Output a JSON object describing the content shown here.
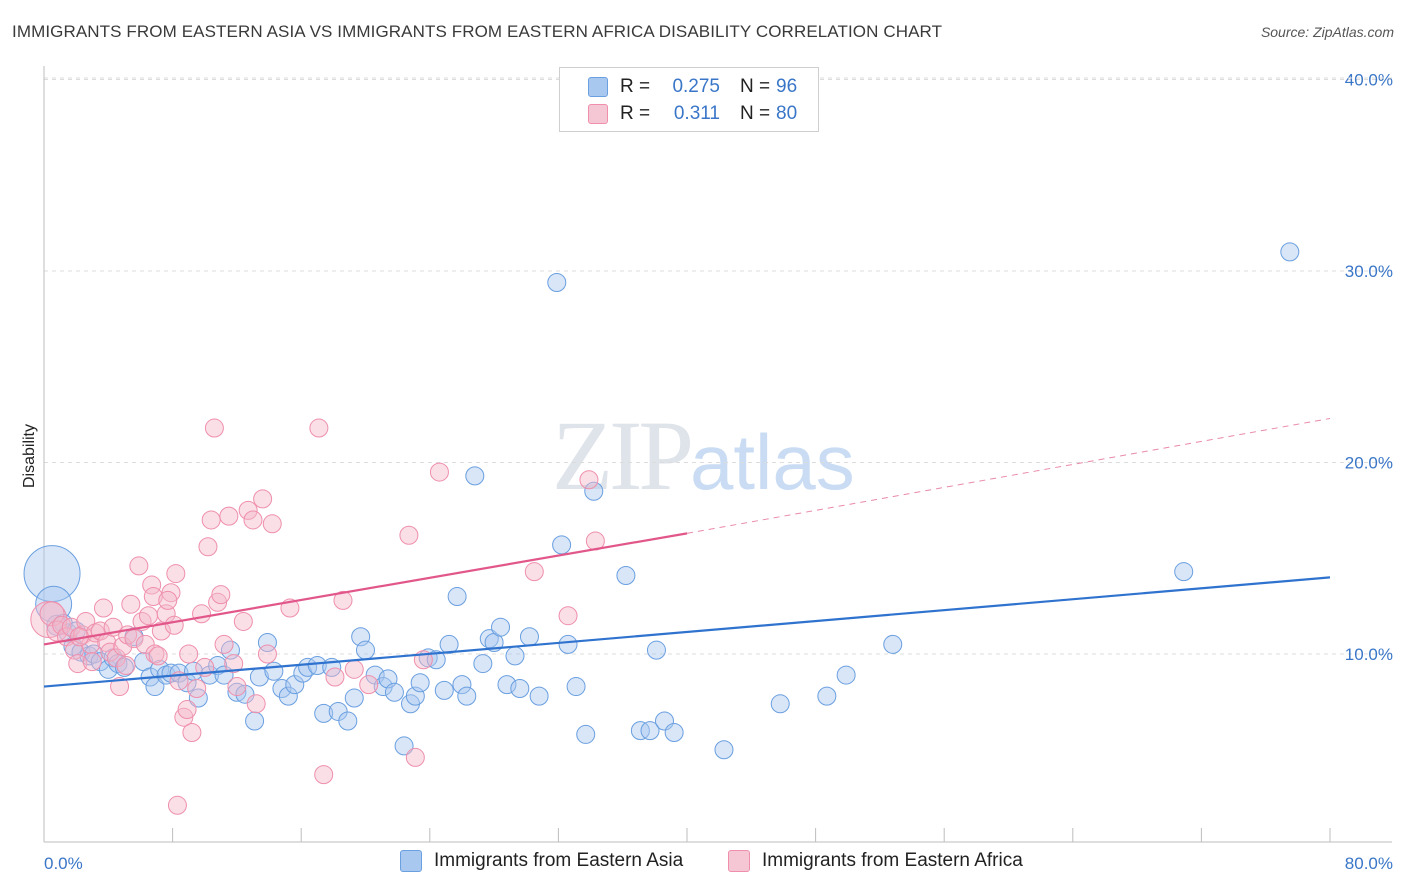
{
  "title": "IMMIGRANTS FROM EASTERN ASIA VS IMMIGRANTS FROM EASTERN AFRICA DISABILITY CORRELATION CHART",
  "source": "Source: ZipAtlas.com",
  "watermark": {
    "zip": "ZIP",
    "atlas": "atlas"
  },
  "legend": {
    "rows": [
      {
        "r_label": "R =",
        "r_value": "0.275",
        "n_label": "N =",
        "n_value": "96",
        "color": "#a9c8ef"
      },
      {
        "r_label": "R =",
        "r_value": "0.311",
        "n_label": "N =",
        "n_value": "80",
        "color": "#f5b8ca"
      }
    ]
  },
  "bottom_legend": [
    {
      "label": "Immigrants from Eastern Asia",
      "color": "#a9c8ef"
    },
    {
      "label": "Immigrants from Eastern Africa",
      "color": "#f5b8ca"
    }
  ],
  "chart_data": {
    "type": "scatter",
    "title": "IMMIGRANTS FROM EASTERN ASIA VS IMMIGRANTS FROM EASTERN AFRICA DISABILITY CORRELATION CHART",
    "xlabel": "",
    "ylabel": "Disability",
    "xlim": [
      0,
      80
    ],
    "ylim": [
      0,
      42
    ],
    "x_tick_labels": [
      "0.0%",
      "80.0%"
    ],
    "y_ticks": [
      10,
      20,
      30,
      40
    ],
    "y_tick_labels": [
      "10.0%",
      "20.0%",
      "30.0%",
      "40.0%"
    ],
    "grid": "horizontal dashed",
    "legend_position": "top-center",
    "series": [
      {
        "name": "Immigrants from Eastern Asia",
        "color": "#6a9fe0",
        "trend": {
          "x": [
            0,
            80
          ],
          "y": [
            8.3,
            14.0
          ],
          "color": "#2f73cf"
        },
        "points": [
          [
            0.5,
            14.2,
            28
          ],
          [
            0.6,
            12.6,
            18
          ],
          [
            0.8,
            11.5,
            10
          ],
          [
            1.2,
            11.6,
            9
          ],
          [
            1.5,
            11.1,
            9
          ],
          [
            1.8,
            10.4,
            9
          ],
          [
            2.0,
            11.2,
            9
          ],
          [
            2.3,
            10.1,
            9
          ],
          [
            2.8,
            9.9,
            9
          ],
          [
            3.1,
            10.0,
            9
          ],
          [
            3.5,
            9.6,
            9
          ],
          [
            4.0,
            9.2,
            9
          ],
          [
            4.3,
            9.8,
            9
          ],
          [
            4.6,
            9.5,
            9
          ],
          [
            5.0,
            9.3,
            9
          ],
          [
            5.6,
            10.9,
            9
          ],
          [
            6.2,
            9.6,
            9
          ],
          [
            6.6,
            8.8,
            9
          ],
          [
            6.9,
            8.3,
            9
          ],
          [
            7.2,
            9.2,
            9
          ],
          [
            7.6,
            8.9,
            9
          ],
          [
            7.9,
            9.0,
            9
          ],
          [
            8.4,
            9.0,
            9
          ],
          [
            8.9,
            8.5,
            9
          ],
          [
            9.3,
            9.1,
            9
          ],
          [
            9.6,
            7.7,
            9
          ],
          [
            10.3,
            8.9,
            9
          ],
          [
            10.8,
            9.4,
            9
          ],
          [
            11.2,
            8.9,
            9
          ],
          [
            11.6,
            10.2,
            9
          ],
          [
            12.0,
            8.0,
            9
          ],
          [
            12.5,
            7.9,
            9
          ],
          [
            13.1,
            6.5,
            9
          ],
          [
            13.4,
            8.8,
            9
          ],
          [
            13.9,
            10.6,
            9
          ],
          [
            14.3,
            9.1,
            9
          ],
          [
            14.8,
            8.2,
            9
          ],
          [
            15.2,
            7.8,
            9
          ],
          [
            15.6,
            8.4,
            9
          ],
          [
            16.1,
            9.0,
            9
          ],
          [
            16.4,
            9.3,
            9
          ],
          [
            17.0,
            9.4,
            9
          ],
          [
            17.4,
            6.9,
            9
          ],
          [
            17.9,
            9.3,
            9
          ],
          [
            18.3,
            7.0,
            9
          ],
          [
            18.9,
            6.5,
            9
          ],
          [
            19.3,
            7.7,
            9
          ],
          [
            19.7,
            10.9,
            9
          ],
          [
            20.0,
            10.2,
            9
          ],
          [
            20.6,
            8.9,
            9
          ],
          [
            21.1,
            8.3,
            9
          ],
          [
            21.4,
            8.7,
            9
          ],
          [
            21.8,
            8.0,
            9
          ],
          [
            22.4,
            5.2,
            9
          ],
          [
            22.8,
            7.4,
            9
          ],
          [
            23.1,
            7.8,
            9
          ],
          [
            23.4,
            8.5,
            9
          ],
          [
            23.9,
            9.8,
            9
          ],
          [
            24.4,
            9.7,
            9
          ],
          [
            24.9,
            8.1,
            9
          ],
          [
            25.2,
            10.5,
            9
          ],
          [
            25.7,
            13.0,
            9
          ],
          [
            26.0,
            8.4,
            9
          ],
          [
            26.3,
            7.8,
            9
          ],
          [
            26.8,
            19.3,
            9
          ],
          [
            27.3,
            9.5,
            9
          ],
          [
            27.7,
            10.8,
            9
          ],
          [
            28.0,
            10.6,
            9
          ],
          [
            28.4,
            11.4,
            9
          ],
          [
            28.8,
            8.4,
            9
          ],
          [
            29.3,
            9.9,
            9
          ],
          [
            29.6,
            8.2,
            9
          ],
          [
            30.2,
            10.9,
            9
          ],
          [
            30.8,
            7.8,
            9
          ],
          [
            31.9,
            29.4,
            9
          ],
          [
            32.2,
            15.7,
            9
          ],
          [
            32.6,
            10.5,
            9
          ],
          [
            33.1,
            8.3,
            9
          ],
          [
            33.7,
            5.8,
            9
          ],
          [
            34.2,
            18.5,
            9
          ],
          [
            36.2,
            14.1,
            9
          ],
          [
            37.1,
            6.0,
            9
          ],
          [
            37.7,
            6.0,
            9
          ],
          [
            38.1,
            10.2,
            9
          ],
          [
            38.6,
            6.5,
            9
          ],
          [
            39.2,
            5.9,
            9
          ],
          [
            42.3,
            5.0,
            9
          ],
          [
            45.8,
            7.4,
            9
          ],
          [
            48.7,
            7.8,
            9
          ],
          [
            49.9,
            8.9,
            9
          ],
          [
            52.8,
            10.5,
            9
          ],
          [
            70.9,
            14.3,
            9
          ],
          [
            77.5,
            31.0,
            9
          ]
        ]
      },
      {
        "name": "Immigrants from Eastern Africa",
        "color": "#ef8fac",
        "trend": {
          "x": [
            0,
            40
          ],
          "y": [
            10.5,
            16.3
          ],
          "color": "#e2578a",
          "dashed_extension": {
            "x": [
              40,
              80
            ],
            "y": [
              16.3,
              22.3
            ]
          }
        },
        "points": [
          [
            0.3,
            11.8,
            18
          ],
          [
            0.5,
            12.1,
            12
          ],
          [
            0.8,
            11.2,
            10
          ],
          [
            1.1,
            11.5,
            9
          ],
          [
            1.4,
            10.9,
            9
          ],
          [
            1.7,
            11.4,
            9
          ],
          [
            1.9,
            10.2,
            9
          ],
          [
            2.1,
            9.5,
            9
          ],
          [
            2.4,
            11.0,
            9
          ],
          [
            2.6,
            11.7,
            9
          ],
          [
            2.9,
            10.5,
            9
          ],
          [
            3.2,
            11.1,
            9
          ],
          [
            3.5,
            11.2,
            9
          ],
          [
            3.7,
            12.4,
            9
          ],
          [
            3.9,
            10.6,
            9
          ],
          [
            4.1,
            10.1,
            9
          ],
          [
            4.3,
            11.4,
            9
          ],
          [
            4.5,
            9.8,
            9
          ],
          [
            4.7,
            8.3,
            9
          ],
          [
            4.9,
            10.4,
            9
          ],
          [
            5.2,
            11.0,
            9
          ],
          [
            5.4,
            12.6,
            9
          ],
          [
            5.6,
            10.8,
            9
          ],
          [
            5.9,
            14.6,
            9
          ],
          [
            6.1,
            11.7,
            9
          ],
          [
            6.3,
            10.5,
            9
          ],
          [
            6.5,
            12.0,
            9
          ],
          [
            6.7,
            13.6,
            9
          ],
          [
            6.9,
            10.0,
            9
          ],
          [
            7.1,
            9.9,
            9
          ],
          [
            7.3,
            11.2,
            9
          ],
          [
            7.6,
            12.1,
            9
          ],
          [
            7.9,
            13.2,
            9
          ],
          [
            8.1,
            11.5,
            9
          ],
          [
            8.2,
            14.2,
            9
          ],
          [
            8.4,
            8.6,
            9
          ],
          [
            8.7,
            6.7,
            9
          ],
          [
            8.9,
            7.1,
            9
          ],
          [
            9.0,
            10.0,
            9
          ],
          [
            9.2,
            5.9,
            9
          ],
          [
            9.5,
            8.2,
            9
          ],
          [
            9.8,
            12.1,
            9
          ],
          [
            10.0,
            9.3,
            9
          ],
          [
            10.2,
            15.6,
            9
          ],
          [
            10.4,
            17.0,
            9
          ],
          [
            10.6,
            21.8,
            9
          ],
          [
            10.8,
            12.7,
            9
          ],
          [
            11.0,
            13.1,
            9
          ],
          [
            11.2,
            10.5,
            9
          ],
          [
            11.5,
            17.2,
            9
          ],
          [
            11.8,
            9.5,
            9
          ],
          [
            12.0,
            8.3,
            9
          ],
          [
            12.4,
            11.7,
            9
          ],
          [
            12.7,
            17.5,
            9
          ],
          [
            13.0,
            17.0,
            9
          ],
          [
            13.2,
            7.4,
            9
          ],
          [
            13.6,
            18.1,
            9
          ],
          [
            13.9,
            10.0,
            9
          ],
          [
            14.2,
            16.8,
            9
          ],
          [
            15.3,
            12.4,
            9
          ],
          [
            17.1,
            21.8,
            9
          ],
          [
            17.4,
            3.7,
            9
          ],
          [
            18.1,
            8.8,
            9
          ],
          [
            18.6,
            12.8,
            9
          ],
          [
            19.3,
            9.2,
            9
          ],
          [
            20.2,
            8.4,
            9
          ],
          [
            22.7,
            16.2,
            9
          ],
          [
            23.1,
            4.6,
            9
          ],
          [
            23.6,
            9.7,
            9
          ],
          [
            24.6,
            19.5,
            9
          ],
          [
            30.5,
            14.3,
            9
          ],
          [
            32.6,
            12.0,
            9
          ],
          [
            33.9,
            19.1,
            9
          ],
          [
            34.3,
            15.9,
            9
          ],
          [
            8.3,
            2.1,
            9
          ],
          [
            5.1,
            9.4,
            9
          ],
          [
            6.8,
            13.0,
            9
          ],
          [
            7.7,
            12.8,
            9
          ],
          [
            3.0,
            9.6,
            9
          ],
          [
            2.2,
            10.9,
            9
          ]
        ]
      }
    ]
  }
}
